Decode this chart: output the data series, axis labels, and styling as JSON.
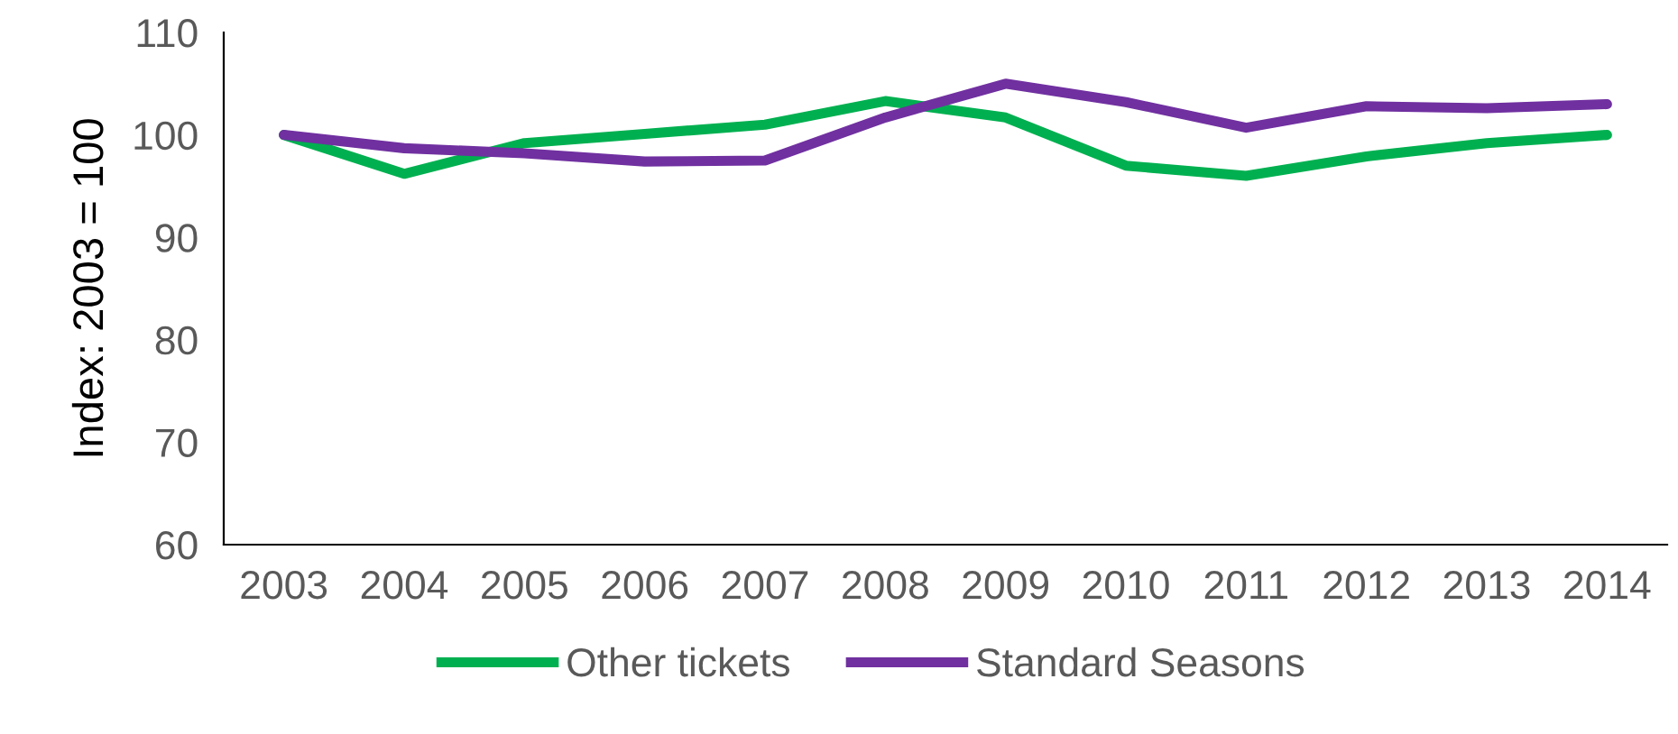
{
  "chart_data": {
    "type": "line",
    "ylabel": "Index: 2003 = 100",
    "categories": [
      "2003",
      "2004",
      "2005",
      "2006",
      "2007",
      "2008",
      "2009",
      "2010",
      "2011",
      "2012",
      "2013",
      "2014"
    ],
    "series": [
      {
        "name": "Other tickets",
        "color": "#00b050",
        "values": [
          100,
          96.2,
          99.2,
          100.1,
          101,
          103.3,
          101.7,
          97,
          96,
          97.9,
          99.2,
          100
        ]
      },
      {
        "name": "Standard Seasons",
        "color": "#7030a0",
        "values": [
          100,
          98.7,
          98.2,
          97.4,
          97.5,
          101.7,
          105,
          103.2,
          100.7,
          102.8,
          102.6,
          103
        ]
      }
    ],
    "ylim": [
      60,
      110
    ],
    "yticks": [
      60,
      70,
      80,
      90,
      100,
      110
    ],
    "grid": false,
    "legend": "bottom",
    "marker": "none",
    "line_style": "solid"
  }
}
